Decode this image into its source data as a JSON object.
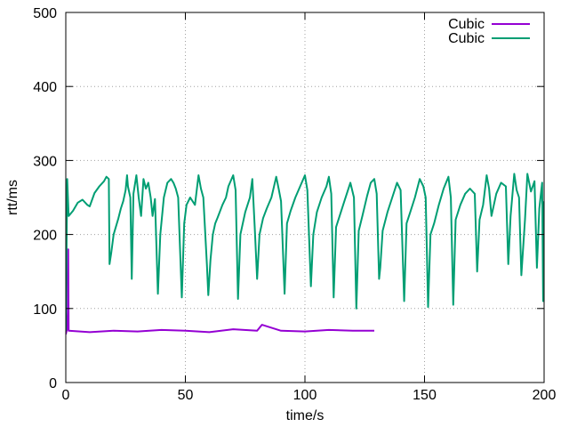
{
  "chart_data": {
    "type": "line",
    "xlabel": "time/s",
    "ylabel": "rtt/ms",
    "xlim": [
      0,
      200
    ],
    "ylim": [
      0,
      500
    ],
    "x_ticks": [
      0,
      50,
      100,
      150,
      200
    ],
    "y_ticks": [
      0,
      100,
      200,
      300,
      400,
      500
    ],
    "grid": true,
    "legend_position": "top-right",
    "series": [
      {
        "name": "Cubic",
        "color": "#9400d3",
        "style": "dense band 64-78 ms",
        "points": [
          [
            0.0,
            65
          ],
          [
            0.5,
            72
          ],
          [
            0.8,
            95
          ],
          [
            1.0,
            180
          ],
          [
            1.2,
            70
          ],
          [
            10,
            68
          ],
          [
            20,
            70
          ],
          [
            30,
            69
          ],
          [
            40,
            71
          ],
          [
            50,
            70
          ],
          [
            60,
            68
          ],
          [
            70,
            72
          ],
          [
            80,
            70
          ],
          [
            82,
            78
          ],
          [
            90,
            70
          ],
          [
            100,
            69
          ],
          [
            110,
            71
          ],
          [
            120,
            70
          ],
          [
            129,
            70
          ]
        ]
      },
      {
        "name": "Cubic",
        "color": "#009e73",
        "points": [
          [
            0,
            70
          ],
          [
            0.6,
            275
          ],
          [
            1.2,
            225
          ],
          [
            3,
            232
          ],
          [
            5,
            243
          ],
          [
            7,
            247
          ],
          [
            9,
            240
          ],
          [
            10,
            238
          ],
          [
            12,
            256
          ],
          [
            14,
            265
          ],
          [
            16,
            272
          ],
          [
            17,
            278
          ],
          [
            18,
            275
          ],
          [
            18.3,
            160
          ],
          [
            19,
            175
          ],
          [
            20,
            200
          ],
          [
            22,
            222
          ],
          [
            23,
            235
          ],
          [
            24,
            245
          ],
          [
            25,
            260
          ],
          [
            25.6,
            280
          ],
          [
            26,
            265
          ],
          [
            27,
            250
          ],
          [
            27.6,
            140
          ],
          [
            28.3,
            255
          ],
          [
            29.5,
            280
          ],
          [
            30.5,
            250
          ],
          [
            31.5,
            225
          ],
          [
            32.5,
            275
          ],
          [
            33.5,
            262
          ],
          [
            34.5,
            270
          ],
          [
            35.5,
            250
          ],
          [
            36.3,
            225
          ],
          [
            37.3,
            248
          ],
          [
            38.5,
            120
          ],
          [
            39.5,
            200
          ],
          [
            41,
            250
          ],
          [
            42.5,
            270
          ],
          [
            44,
            275
          ],
          [
            45,
            270
          ],
          [
            46,
            262
          ],
          [
            47,
            250
          ],
          [
            48.5,
            115
          ],
          [
            49.5,
            215
          ],
          [
            50.5,
            240
          ],
          [
            52,
            250
          ],
          [
            54,
            240
          ],
          [
            55.5,
            280
          ],
          [
            56.5,
            262
          ],
          [
            57.5,
            250
          ],
          [
            59,
            160
          ],
          [
            59.6,
            118
          ],
          [
            60.5,
            165
          ],
          [
            61.5,
            200
          ],
          [
            62.5,
            215
          ],
          [
            63.5,
            223
          ],
          [
            65.5,
            240
          ],
          [
            67,
            250
          ],
          [
            68,
            265
          ],
          [
            70,
            280
          ],
          [
            71,
            260
          ],
          [
            72,
            113
          ],
          [
            73,
            200
          ],
          [
            75,
            230
          ],
          [
            77,
            250
          ],
          [
            78,
            275
          ],
          [
            79,
            210
          ],
          [
            80,
            140
          ],
          [
            81,
            200
          ],
          [
            82.5,
            222
          ],
          [
            84,
            235
          ],
          [
            86,
            250
          ],
          [
            88,
            278
          ],
          [
            89,
            262
          ],
          [
            90,
            245
          ],
          [
            91.5,
            120
          ],
          [
            92.5,
            215
          ],
          [
            94,
            232
          ],
          [
            96,
            250
          ],
          [
            98,
            265
          ],
          [
            100,
            280
          ],
          [
            101,
            260
          ],
          [
            102.5,
            130
          ],
          [
            103.5,
            200
          ],
          [
            105,
            230
          ],
          [
            107,
            250
          ],
          [
            109,
            265
          ],
          [
            110,
            278
          ],
          [
            111,
            255
          ],
          [
            112,
            115
          ],
          [
            113,
            210
          ],
          [
            114.5,
            225
          ],
          [
            116,
            240
          ],
          [
            118,
            260
          ],
          [
            119,
            270
          ],
          [
            120.5,
            250
          ],
          [
            121.5,
            100
          ],
          [
            122.5,
            205
          ],
          [
            124,
            225
          ],
          [
            126,
            252
          ],
          [
            127.5,
            270
          ],
          [
            129,
            275
          ],
          [
            130,
            255
          ],
          [
            131,
            140
          ],
          [
            131.5,
            155
          ],
          [
            132.5,
            205
          ],
          [
            134.5,
            230
          ],
          [
            136.5,
            250
          ],
          [
            138.5,
            270
          ],
          [
            140,
            260
          ],
          [
            141.5,
            110
          ],
          [
            142.5,
            215
          ],
          [
            144,
            230
          ],
          [
            146,
            250
          ],
          [
            148,
            275
          ],
          [
            149.5,
            265
          ],
          [
            150.5,
            250
          ],
          [
            151.5,
            102
          ],
          [
            152.5,
            200
          ],
          [
            154,
            215
          ],
          [
            156,
            240
          ],
          [
            158,
            262
          ],
          [
            160,
            278
          ],
          [
            161,
            250
          ],
          [
            162,
            105
          ],
          [
            163,
            220
          ],
          [
            165,
            240
          ],
          [
            167,
            255
          ],
          [
            169,
            262
          ],
          [
            171,
            255
          ],
          [
            172,
            150
          ],
          [
            173,
            220
          ],
          [
            174.5,
            240
          ],
          [
            176,
            280
          ],
          [
            177,
            262
          ],
          [
            178,
            225
          ],
          [
            180,
            255
          ],
          [
            182,
            270
          ],
          [
            184,
            265
          ],
          [
            185,
            160
          ],
          [
            186,
            225
          ],
          [
            187.5,
            282
          ],
          [
            188.5,
            260
          ],
          [
            189.5,
            250
          ],
          [
            190.5,
            145
          ],
          [
            192,
            220
          ],
          [
            193,
            282
          ],
          [
            194.5,
            258
          ],
          [
            196,
            272
          ],
          [
            197,
            155
          ],
          [
            198,
            235
          ],
          [
            199.2,
            270
          ],
          [
            199.6,
            110
          ],
          [
            200,
            245
          ]
        ]
      }
    ]
  }
}
